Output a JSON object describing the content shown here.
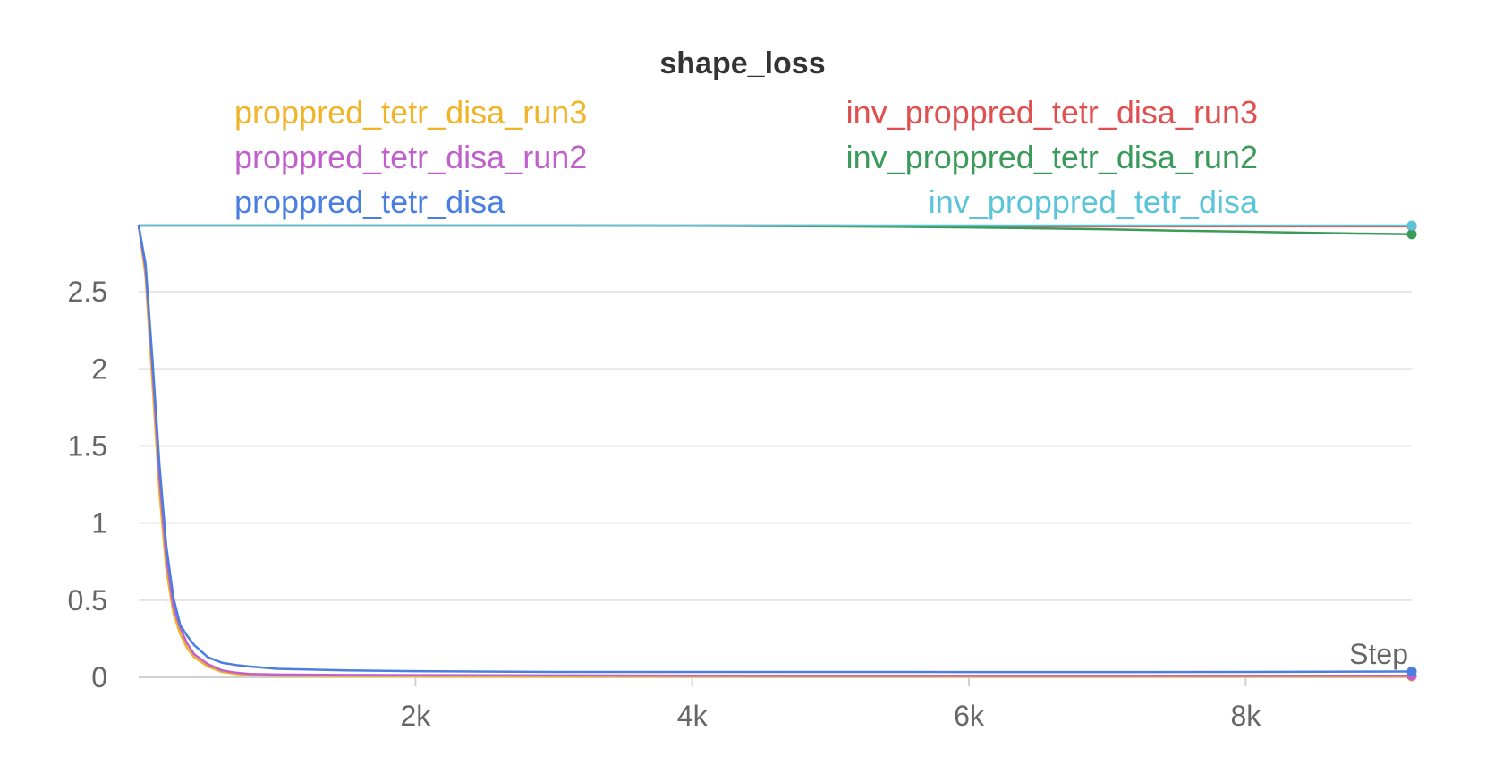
{
  "chart_data": {
    "type": "line",
    "title": "shape_loss",
    "xlabel": "Step",
    "ylabel": "",
    "xlim": [
      0,
      9200
    ],
    "ylim": [
      0,
      2.93
    ],
    "x_ticks": [
      2000,
      4000,
      6000,
      8000
    ],
    "x_tick_labels": [
      "2k",
      "4k",
      "6k",
      "8k"
    ],
    "y_ticks": [
      0,
      0.5,
      1,
      1.5,
      2,
      2.5
    ],
    "y_tick_labels": [
      "0",
      "0.5",
      "1",
      "1.5",
      "2",
      "2.5"
    ],
    "grid": true,
    "legend_placement": "top",
    "series": [
      {
        "name": "proppred_tetr_disa_run3",
        "color": "#f0b429",
        "legend_col": 0,
        "x": [
          0,
          50,
          100,
          150,
          200,
          250,
          300,
          350,
          400,
          500,
          600,
          700,
          800,
          1000,
          1500,
          2000,
          3000,
          4000,
          5000,
          6000,
          7000,
          8000,
          9200
        ],
        "y": [
          2.93,
          2.6,
          1.9,
          1.2,
          0.7,
          0.42,
          0.28,
          0.19,
          0.13,
          0.07,
          0.035,
          0.022,
          0.015,
          0.01,
          0.008,
          0.007,
          0.006,
          0.006,
          0.005,
          0.005,
          0.005,
          0.005,
          0.005
        ]
      },
      {
        "name": "proppred_tetr_disa_run2",
        "color": "#c061cb",
        "legend_col": 0,
        "x": [
          0,
          50,
          100,
          150,
          200,
          250,
          300,
          350,
          400,
          500,
          600,
          700,
          800,
          1000,
          1500,
          2000,
          3000,
          4000,
          5000,
          6000,
          7000,
          8000,
          9200
        ],
        "y": [
          2.93,
          2.65,
          2.0,
          1.3,
          0.78,
          0.46,
          0.32,
          0.22,
          0.15,
          0.085,
          0.045,
          0.03,
          0.022,
          0.018,
          0.015,
          0.014,
          0.012,
          0.011,
          0.01,
          0.01,
          0.01,
          0.01,
          0.01
        ]
      },
      {
        "name": "proppred_tetr_disa",
        "color": "#4a7fe0",
        "legend_col": 0,
        "x": [
          0,
          50,
          100,
          150,
          200,
          250,
          300,
          350,
          400,
          500,
          600,
          700,
          800,
          1000,
          1500,
          2000,
          3000,
          4000,
          5000,
          6000,
          7000,
          8000,
          9200
        ],
        "y": [
          2.93,
          2.68,
          2.05,
          1.38,
          0.85,
          0.52,
          0.34,
          0.27,
          0.21,
          0.13,
          0.095,
          0.08,
          0.07,
          0.055,
          0.045,
          0.04,
          0.035,
          0.035,
          0.035,
          0.034,
          0.034,
          0.035,
          0.038
        ]
      },
      {
        "name": "inv_proppred_tetr_disa_run3",
        "color": "#e05050",
        "legend_col": 1,
        "x": [
          0,
          1000,
          2000,
          3000,
          4000,
          5000,
          6000,
          7000,
          8000,
          9200
        ],
        "y": [
          2.93,
          2.93,
          2.93,
          2.93,
          2.93,
          2.93,
          2.925,
          2.925,
          2.925,
          2.925
        ]
      },
      {
        "name": "inv_proppred_tetr_disa_run2",
        "color": "#3a9a5a",
        "legend_col": 1,
        "x": [
          0,
          1000,
          2000,
          3000,
          4000,
          5000,
          5500,
          6000,
          6500,
          7000,
          7500,
          8000,
          8500,
          9200
        ],
        "y": [
          2.93,
          2.93,
          2.93,
          2.93,
          2.928,
          2.925,
          2.922,
          2.918,
          2.912,
          2.905,
          2.897,
          2.89,
          2.882,
          2.873
        ]
      },
      {
        "name": "inv_proppred_tetr_disa",
        "color": "#5ac4d8",
        "legend_col": 1,
        "x": [
          0,
          1000,
          2000,
          3000,
          4000,
          5000,
          6000,
          7000,
          8000,
          9200
        ],
        "y": [
          2.93,
          2.93,
          2.93,
          2.93,
          2.93,
          2.93,
          2.93,
          2.93,
          2.93,
          2.93
        ]
      }
    ]
  }
}
